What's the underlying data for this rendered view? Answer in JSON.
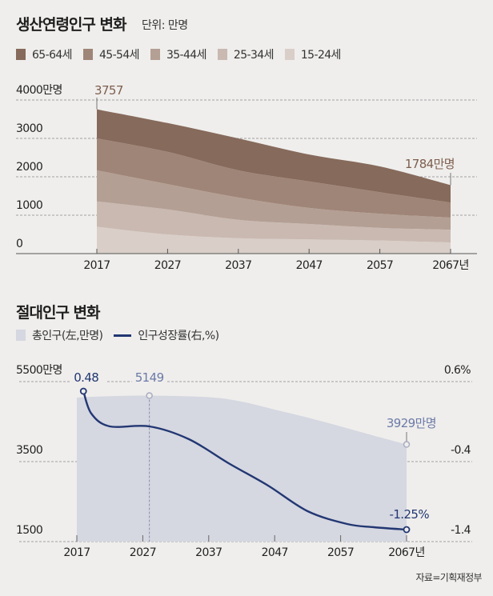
{
  "chart_data": [
    {
      "type": "area",
      "stacked": true,
      "title": "생산연령인구 변화",
      "unit_label": "단위: 만명",
      "x": [
        2017,
        2027,
        2037,
        2047,
        2057,
        2067
      ],
      "x_tick_labels": [
        "2017",
        "2027",
        "2037",
        "2047",
        "2057",
        "2067년"
      ],
      "y_tick_labels": [
        "0",
        "1000",
        "2000",
        "3000",
        "4000만명"
      ],
      "y_ticks": [
        0,
        1000,
        2000,
        3000,
        4000
      ],
      "ylim": [
        0,
        4000
      ],
      "series": [
        {
          "name": "15-24세",
          "color": "#d9cec8",
          "values": [
            700,
            500,
            400,
            370,
            340,
            290
          ]
        },
        {
          "name": "25-34세",
          "color": "#c9b9b1",
          "values": [
            660,
            650,
            480,
            400,
            330,
            330
          ]
        },
        {
          "name": "35-44세",
          "color": "#b49f94",
          "values": [
            810,
            660,
            580,
            420,
            370,
            320
          ]
        },
        {
          "name": "45-54세",
          "color": "#9f8577",
          "values": [
            830,
            840,
            710,
            690,
            560,
            390
          ]
        },
        {
          "name": "65-64세",
          "color": "#866a5b",
          "values": [
            757,
            750,
            830,
            700,
            670,
            454
          ]
        }
      ],
      "legend_order": [
        "65-64세",
        "45-54세",
        "35-44세",
        "25-34세",
        "15-24세"
      ],
      "annotations": {
        "start": "3757",
        "end": "1784만명"
      },
      "grid": true,
      "legend_position": "top-left"
    },
    {
      "type": "area+line",
      "title": "절대인구 변화",
      "x_tick_labels": [
        "2017",
        "2027",
        "2037",
        "2047",
        "2057",
        "2067년"
      ],
      "x_ticks": [
        2017,
        2027,
        2037,
        2047,
        2057,
        2067
      ],
      "left_axis": {
        "ticks": [
          5500,
          3500,
          1500
        ],
        "labels": [
          "5500만명",
          "3500",
          "1500"
        ],
        "ylim": [
          1500,
          5500
        ]
      },
      "right_axis": {
        "ticks": [
          0.6,
          -0.4,
          -1.4
        ],
        "labels": [
          "0.6%",
          "-0.4",
          "-1.4"
        ],
        "ylim": [
          -1.4,
          0.6
        ]
      },
      "series": [
        {
          "name": "총인구(左,만명)",
          "type": "area",
          "axis": "left",
          "color": "#d5d7e1",
          "x": [
            2017,
            2022,
            2028,
            2037,
            2042,
            2047,
            2052,
            2057,
            2062,
            2067
          ],
          "values": [
            5100,
            5135,
            5149,
            5110,
            5000,
            4800,
            4600,
            4380,
            4150,
            3929
          ]
        },
        {
          "name": "인구성장률(右,%)",
          "type": "line",
          "axis": "right",
          "color": "#223772",
          "x": [
            2018,
            2019.2,
            2022,
            2028,
            2034,
            2040,
            2046,
            2052,
            2058,
            2062,
            2067
          ],
          "values": [
            0.48,
            0.2,
            0.04,
            0.04,
            -0.12,
            -0.42,
            -0.7,
            -1.02,
            -1.18,
            -1.22,
            -1.25
          ]
        }
      ],
      "annotations": {
        "growth_start": "0.48",
        "peak": "5149",
        "pop_end": "3929만명",
        "growth_end": "-1.25%"
      },
      "grid": true,
      "legend_position": "top-left"
    }
  ],
  "source": "자료=기획재정부"
}
